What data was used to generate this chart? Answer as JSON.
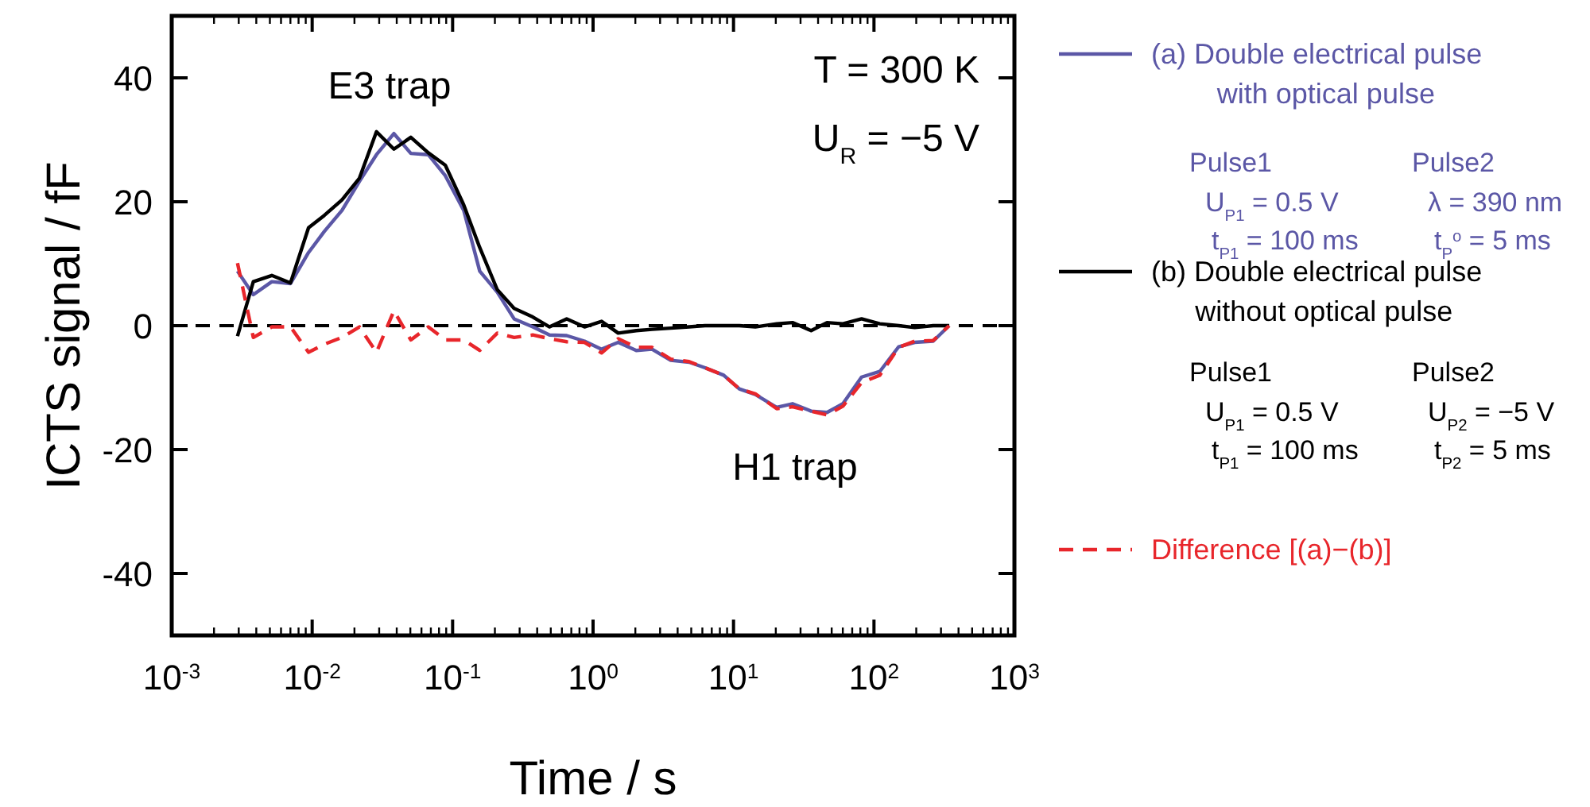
{
  "chart_data": {
    "type": "line",
    "xlabel": "Time / s",
    "ylabel": "ICTS signal / fF",
    "log": "x",
    "xlim": [
      0.001,
      1000
    ],
    "ylim": [
      -50,
      50
    ],
    "xticks": [
      {
        "value": 0.001,
        "label": "10$^{-3}$"
      },
      {
        "value": 0.01,
        "label": "10$^{-2}$"
      },
      {
        "value": 0.1,
        "label": "10$^{-1}$"
      },
      {
        "value": 1,
        "label": "10$^{0}$"
      },
      {
        "value": 10,
        "label": "10$^{1}$"
      },
      {
        "value": 100,
        "label": "10$^{2}$"
      },
      {
        "value": 1000,
        "label": "10$^{3}$"
      }
    ],
    "yticks": [
      -40,
      -20,
      0,
      20,
      40
    ],
    "x": [
      0.00294,
      0.00381,
      0.00516,
      0.00701,
      0.00942,
      0.0122,
      0.0163,
      0.0217,
      0.0287,
      0.0382,
      0.0504,
      0.0671,
      0.0887,
      0.12,
      0.156,
      0.208,
      0.274,
      0.372,
      0.49,
      0.649,
      0.869,
      1.15,
      1.51,
      2.03,
      2.63,
      3.57,
      4.83,
      6.27,
      8.51,
      11,
      14.3,
      20.3,
      26.3,
      35.7,
      46.3,
      60.1,
      81.6,
      110,
      150,
      195,
      264,
      343
    ],
    "series": [
      {
        "name": "(a) Double electrical pulse with optical pulse",
        "color": "#5b57a6",
        "values": [
          8.8,
          5.0,
          7.1,
          6.8,
          11.8,
          15.2,
          18.6,
          23.3,
          27.6,
          31.0,
          27.8,
          27.6,
          24.2,
          18.6,
          8.8,
          5.4,
          1.1,
          -0.2,
          -1.5,
          -1.6,
          -2.5,
          -3.8,
          -2.7,
          -4.0,
          -3.8,
          -5.6,
          -5.9,
          -6.8,
          -8.0,
          -10.2,
          -11.1,
          -13.2,
          -12.6,
          -13.8,
          -14.0,
          -12.6,
          -8.3,
          -7.4,
          -3.4,
          -2.7,
          -2.5,
          0
        ]
      },
      {
        "name": "(b) Double electrical pulse without optical pulse",
        "color": "#000000",
        "values": [
          -1.7,
          7.1,
          8.1,
          6.9,
          15.8,
          17.8,
          20.3,
          23.8,
          31.3,
          28.5,
          30.4,
          27.9,
          25.9,
          19.5,
          12.6,
          5.8,
          2.8,
          1.4,
          -0.2,
          1.1,
          -0.2,
          0.7,
          -1.2,
          -0.8,
          -0.6,
          -0.4,
          -0.2,
          0,
          0,
          0,
          -0.2,
          0.3,
          0.5,
          -0.8,
          0.5,
          0.3,
          1.1,
          0.3,
          0,
          -0.3,
          0,
          0
        ]
      },
      {
        "name": "Difference [(a)−(b)]",
        "color": "#e8262b",
        "line_style": "dashed",
        "values": [
          10.1,
          -1.9,
          -0.2,
          -0.2,
          -4.3,
          -3.0,
          -1.9,
          -0.2,
          -4.3,
          2.4,
          -2.3,
          -0.2,
          -2.3,
          -2.3,
          -4.0,
          -1.2,
          -1.9,
          -1.5,
          -2.1,
          -2.6,
          -2.7,
          -4.4,
          -2.1,
          -3.5,
          -3.5,
          -5.4,
          -5.8,
          -6.8,
          -8.0,
          -10.2,
          -11.0,
          -13.4,
          -13.1,
          -13.8,
          -14.4,
          -13.0,
          -9.2,
          -8.0,
          -3.5,
          -2.5,
          -2.4,
          0
        ]
      }
    ],
    "ref_lines": [
      {
        "axis": "y",
        "value": 0,
        "color": "#000000",
        "line_style": "dashed"
      }
    ],
    "legend": "right",
    "grid": false,
    "marker": "none",
    "line_style": "solid",
    "annotations": [
      "E3 trap",
      "H1 trap",
      "T = 300 K",
      "U$_{R}$ = −5 V",
      "Pulse1",
      "U$_{P1}$ = 0.5 V",
      "t$_{P1}$ = 100 ms",
      "Pulse2",
      "λ = 390 nm",
      "t$_{P}$$^{o}$ = 5 ms",
      "Pulse1",
      "U$_{P1}$ = 0.5 V",
      "t$_{P1}$ = 100 ms",
      "Pulse2",
      "U$_{P2}$ = −5 V",
      "t$_{P2}$ = 5 ms"
    ]
  }
}
